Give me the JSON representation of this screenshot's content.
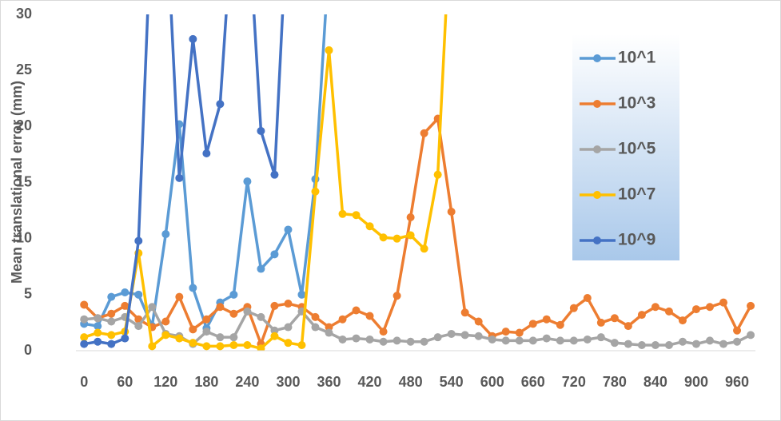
{
  "chart_data": {
    "type": "line",
    "y_label": "Mean translational error (mm)",
    "x": [
      0,
      20,
      40,
      60,
      80,
      100,
      120,
      140,
      160,
      180,
      200,
      220,
      240,
      260,
      280,
      300,
      320,
      340,
      360,
      380,
      400,
      420,
      440,
      460,
      480,
      500,
      520,
      540,
      560,
      580,
      600,
      620,
      640,
      660,
      680,
      700,
      720,
      740,
      760,
      780,
      800,
      820,
      840,
      860,
      880,
      900,
      920,
      940,
      960,
      980
    ],
    "xlim": [
      -12,
      987
    ],
    "xticks": [
      0,
      60,
      120,
      180,
      240,
      300,
      360,
      420,
      480,
      540,
      600,
      660,
      720,
      780,
      840,
      900,
      960
    ],
    "ylim": [
      0,
      30
    ],
    "yticks": [
      0,
      5,
      10,
      15,
      20,
      25,
      30
    ],
    "grid": false,
    "legend": "upper right",
    "series": [
      {
        "name": "10^1",
        "color": "#5b9bd5",
        "values": [
          2.4,
          2.2,
          4.8,
          5.2,
          5.0,
          2.2,
          10.4,
          20.2,
          5.6,
          2.0,
          4.3,
          5.0,
          15.1,
          7.3,
          8.6,
          10.8,
          5.0,
          15.3,
          35,
          null,
          null,
          null,
          null,
          null,
          null,
          null,
          null,
          null,
          null,
          null,
          null,
          null,
          null,
          null,
          null,
          null,
          null,
          null,
          null,
          null,
          null,
          null,
          null,
          null,
          null,
          null,
          null,
          null,
          null,
          null
        ]
      },
      {
        "name": "10^3",
        "color": "#ed7d31",
        "values": [
          4.1,
          2.9,
          3.3,
          4.0,
          2.8,
          2.1,
          2.6,
          4.8,
          1.9,
          2.8,
          3.9,
          3.3,
          3.9,
          0.6,
          4.0,
          4.2,
          3.9,
          3.0,
          2.1,
          2.8,
          3.6,
          3.1,
          1.7,
          4.9,
          11.9,
          19.4,
          20.7,
          12.4,
          3.4,
          2.6,
          1.3,
          1.7,
          1.6,
          2.4,
          2.8,
          2.3,
          3.8,
          4.7,
          2.5,
          2.9,
          2.2,
          3.2,
          3.9,
          3.5,
          2.7,
          3.7,
          3.9,
          4.3,
          1.8,
          4.0
        ]
      },
      {
        "name": "10^5",
        "color": "#a5a5a5",
        "values": [
          2.8,
          2.9,
          2.6,
          3.0,
          2.2,
          3.9,
          1.5,
          1.3,
          0.6,
          1.7,
          1.2,
          1.2,
          3.5,
          3.0,
          1.8,
          2.1,
          3.5,
          2.1,
          1.6,
          1.0,
          1.1,
          1.0,
          0.8,
          0.9,
          0.8,
          0.8,
          1.2,
          1.5,
          1.4,
          1.3,
          1.0,
          0.9,
          0.9,
          0.9,
          1.1,
          0.9,
          0.9,
          1.0,
          1.2,
          0.7,
          0.6,
          0.5,
          0.5,
          0.5,
          0.8,
          0.6,
          0.9,
          0.6,
          0.8,
          1.4
        ]
      },
      {
        "name": "10^7",
        "color": "#ffc000",
        "values": [
          1.2,
          1.6,
          1.4,
          1.7,
          8.7,
          0.4,
          1.4,
          1.1,
          0.7,
          0.4,
          0.4,
          0.5,
          0.5,
          0.2,
          1.3,
          0.7,
          0.5,
          14.2,
          26.8,
          12.2,
          12.1,
          11.1,
          10.1,
          10.0,
          10.3,
          9.1,
          15.7,
          40,
          null,
          null,
          null,
          null,
          null,
          null,
          null,
          null,
          null,
          null,
          null,
          null,
          null,
          null,
          null,
          null,
          null,
          null,
          null,
          null,
          null,
          null
        ]
      },
      {
        "name": "10^9",
        "color": "#4472c4",
        "values": [
          0.6,
          0.8,
          0.6,
          1.1,
          9.8,
          40,
          40,
          15.4,
          27.8,
          17.6,
          22.0,
          40,
          40,
          19.6,
          15.7,
          40,
          null,
          null,
          null,
          null,
          null,
          null,
          null,
          null,
          null,
          null,
          null,
          null,
          null,
          null,
          null,
          null,
          null,
          null,
          null,
          null,
          null,
          null,
          null,
          null,
          null,
          null,
          null,
          null,
          null,
          null,
          null,
          null,
          null,
          null
        ]
      }
    ]
  }
}
